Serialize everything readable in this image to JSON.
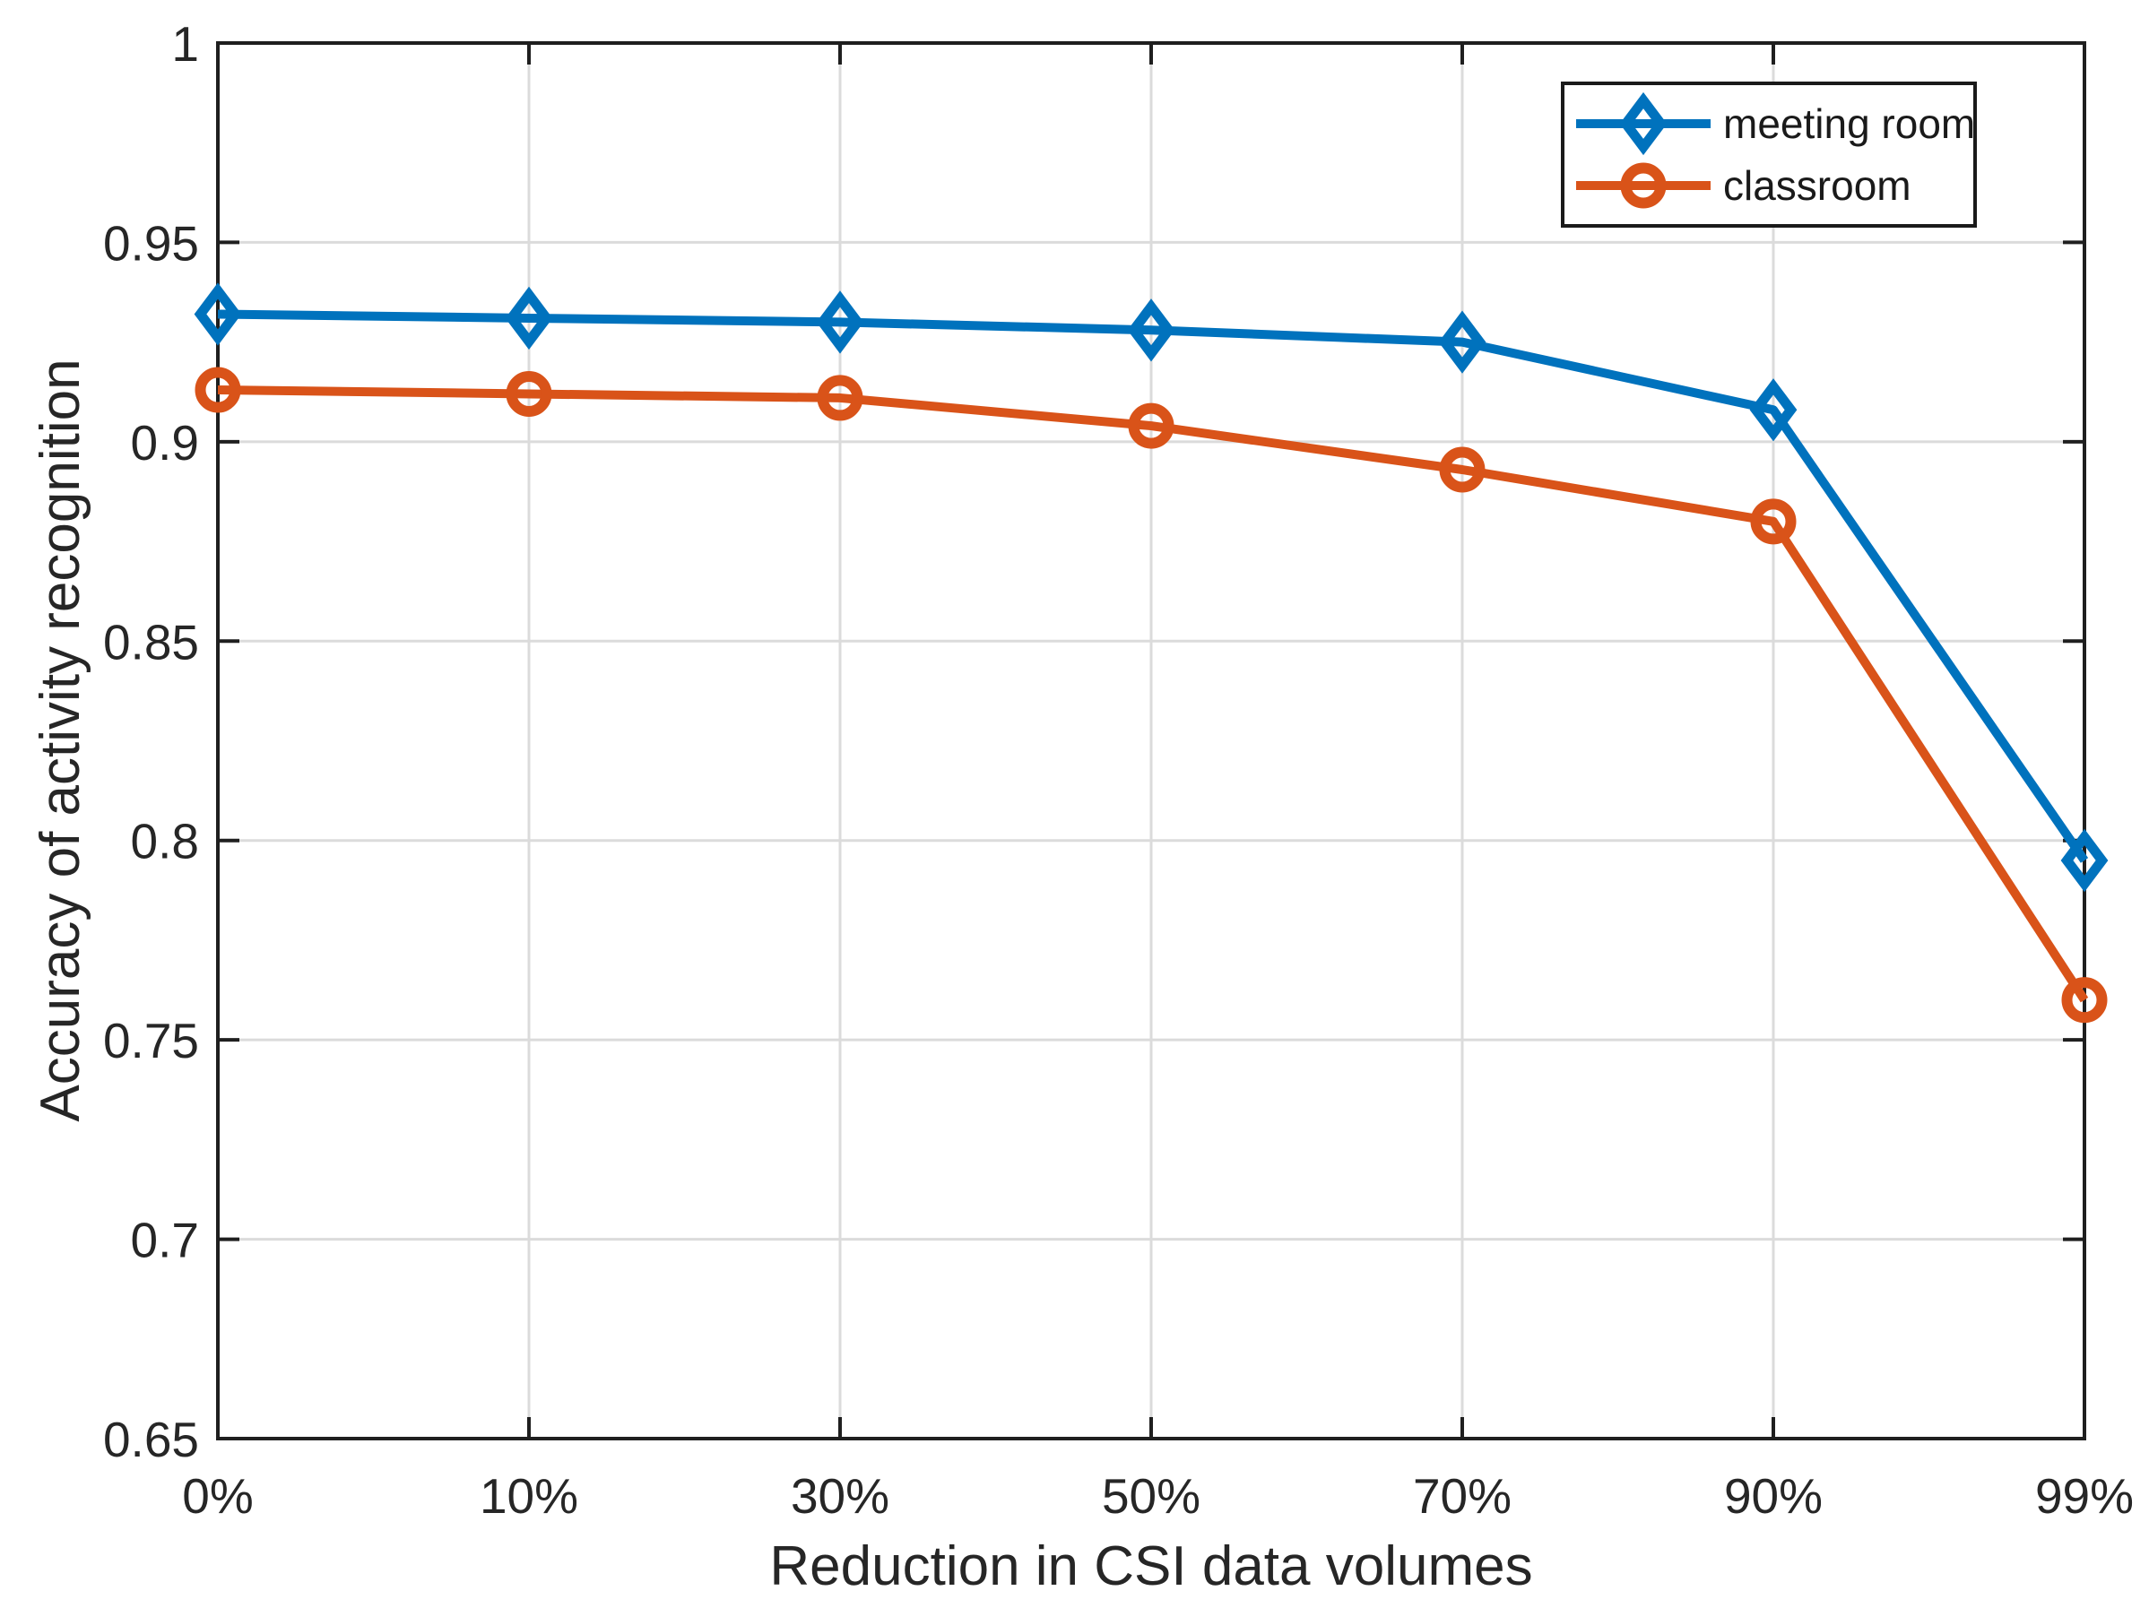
{
  "chart_data": {
    "type": "line",
    "title": "",
    "xlabel": "Reduction in CSI data volumes",
    "ylabel": "Accuracy of activity recognition",
    "categories": [
      "0%",
      "10%",
      "30%",
      "50%",
      "70%",
      "90%",
      "99%"
    ],
    "ylim": [
      0.65,
      1
    ],
    "y_ticks": [
      0.65,
      0.7,
      0.75,
      0.8,
      0.85,
      0.9,
      0.95,
      1
    ],
    "y_tick_labels": [
      "0.65",
      "0.7",
      "0.75",
      "0.8",
      "0.85",
      "0.9",
      "0.95",
      "1"
    ],
    "grid": true,
    "legend_position": "top-right",
    "series": [
      {
        "name": "meeting room",
        "marker": "diamond",
        "color": "#0072BD",
        "values": [
          0.932,
          0.931,
          0.93,
          0.928,
          0.925,
          0.908,
          0.795
        ]
      },
      {
        "name": "classroom",
        "marker": "circle",
        "color": "#D95319",
        "values": [
          0.913,
          0.912,
          0.911,
          0.904,
          0.893,
          0.88,
          0.76
        ]
      }
    ]
  },
  "legend": {
    "items": [
      {
        "label": "meeting room"
      },
      {
        "label": "classroom"
      }
    ]
  },
  "style": {
    "background": "#ffffff",
    "axis_color": "#1f1f1f",
    "grid_color": "#dbdbdb",
    "tick_label_color": "#262626",
    "legend_border_color": "#1a1a1a"
  }
}
